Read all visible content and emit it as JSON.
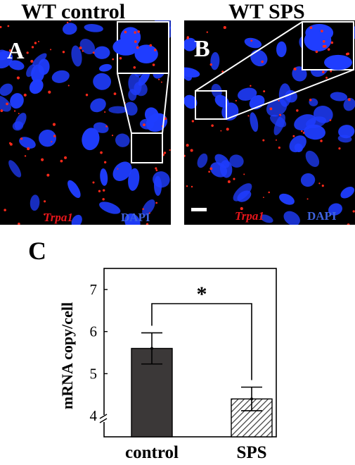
{
  "panels": [
    {
      "title": "WT control",
      "letter": "A",
      "gene_label": "Trpa1",
      "stain_label": "DAPI"
    },
    {
      "title": "WT SPS",
      "letter": "B",
      "gene_label": "Trpa1",
      "stain_label": "DAPI"
    }
  ],
  "chart_letter": "C",
  "colors": {
    "nuclei": "#1f3dff",
    "puncta": "#ff2a1a",
    "control_bar": "#3b3838",
    "sps_bar": "hatched"
  },
  "chart_data": {
    "type": "bar",
    "categories": [
      "control",
      "SPS"
    ],
    "values": [
      5.6,
      4.4
    ],
    "error_bars": [
      0.37,
      0.28
    ],
    "ylabel": "mRNA copy/cell",
    "ylim": [
      3.5,
      7.5
    ],
    "yticks": [
      4,
      5,
      6,
      7
    ],
    "axis_break": true,
    "significance": {
      "between": [
        "control",
        "SPS"
      ],
      "marker": "*"
    }
  }
}
